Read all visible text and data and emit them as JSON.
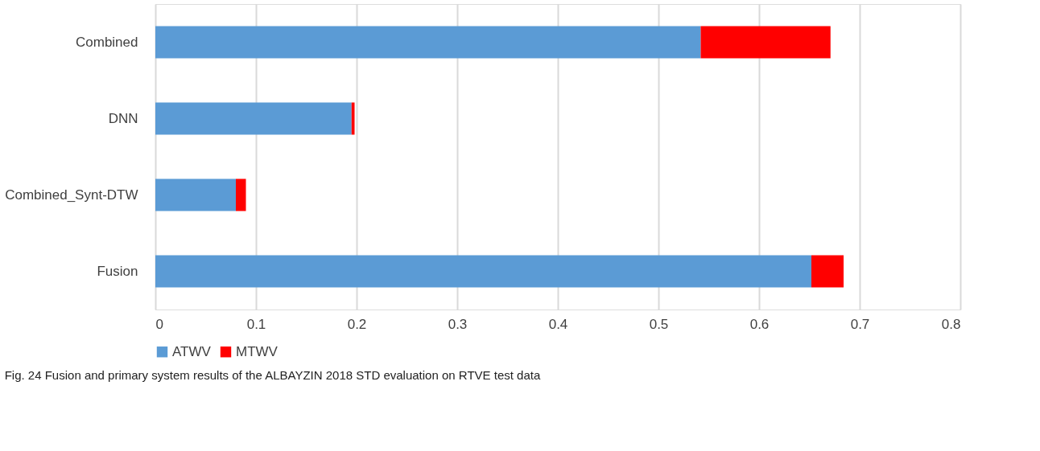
{
  "chart_data": {
    "type": "bar",
    "orientation": "horizontal",
    "stacked": true,
    "categories": [
      "Combined",
      "DNN",
      "Combined_Synt-DTW",
      "Fusion"
    ],
    "series": [
      {
        "name": "ATWV",
        "color": "#5b9bd5",
        "values": [
          0.542,
          0.195,
          0.08,
          0.652
        ]
      },
      {
        "name": "MTWV",
        "color": "#ff0000",
        "values": [
          0.129,
          0.003,
          0.01,
          0.032
        ]
      }
    ],
    "xlim": [
      0,
      0.8
    ],
    "xticks": [
      0,
      0.1,
      0.2,
      0.3,
      0.4,
      0.5,
      0.6,
      0.7,
      0.8
    ],
    "grid": "x",
    "legend": "bottom",
    "annotations": [
      "Fig. 24 Fusion and primary system results of the ALBAYZIN 2018 STD evaluation on RTVE test data"
    ]
  }
}
